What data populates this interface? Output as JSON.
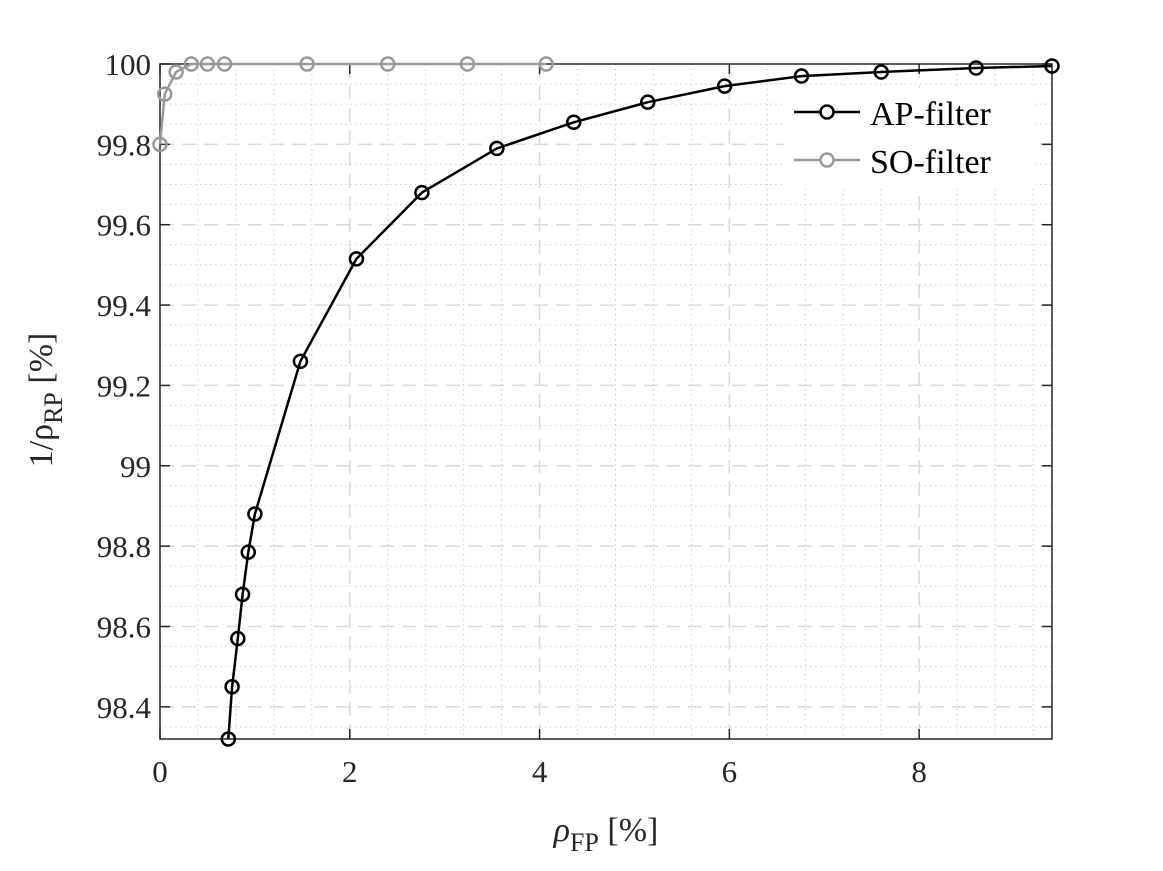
{
  "chart_data": {
    "type": "line",
    "xlabel": "ρ_FP [%]",
    "ylabel": "1/ρ_RP [%]",
    "xlim": [
      0,
      9.4
    ],
    "ylim": [
      98.32,
      100
    ],
    "x_ticks": [
      0,
      2,
      4,
      6,
      8
    ],
    "y_ticks": [
      98.4,
      98.6,
      98.8,
      99,
      99.2,
      99.4,
      99.6,
      99.8,
      100
    ],
    "grid": true,
    "minor_grid": true,
    "legend_position": "top-right",
    "series": [
      {
        "name": "AP-filter",
        "color": "#000000",
        "marker": "circle",
        "x": [
          0.72,
          0.76,
          0.82,
          0.87,
          0.93,
          1.0,
          1.48,
          2.07,
          2.76,
          3.55,
          4.36,
          5.14,
          5.95,
          6.76,
          7.6,
          8.6,
          9.4
        ],
        "y": [
          98.32,
          98.45,
          98.57,
          98.68,
          98.785,
          98.88,
          99.26,
          99.515,
          99.68,
          99.79,
          99.855,
          99.905,
          99.945,
          99.97,
          99.98,
          99.99,
          99.995
        ]
      },
      {
        "name": "SO-filter",
        "color": "#999999",
        "marker": "circle",
        "x": [
          0.0,
          0.05,
          0.17,
          0.33,
          0.5,
          0.68,
          1.55,
          2.4,
          3.24,
          4.07
        ],
        "y": [
          99.8,
          99.925,
          99.98,
          100.0,
          100.0,
          100.0,
          100.0,
          100.0,
          100.0,
          100.0
        ]
      }
    ]
  },
  "labels": {
    "xlabel_main": "ρ",
    "xlabel_sub": "FP",
    "xlabel_unit": " [%]",
    "ylabel_prefix": "1/ρ",
    "ylabel_sub": "RP",
    "ylabel_unit": " [%]"
  }
}
